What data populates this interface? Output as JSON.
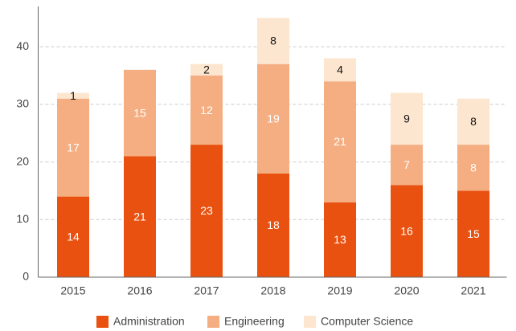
{
  "chart_data": {
    "type": "stacked_bar",
    "categories": [
      "2015",
      "2016",
      "2017",
      "2018",
      "2019",
      "2020",
      "2021"
    ],
    "series": [
      {
        "name": "Administration",
        "color": "#e8510f",
        "values": [
          14,
          21,
          23,
          18,
          13,
          16,
          15
        ]
      },
      {
        "name": "Engineering",
        "color": "#f5ae82",
        "values": [
          17,
          15,
          12,
          19,
          21,
          7,
          8
        ]
      },
      {
        "name": "Computer Science",
        "color": "#fde6cf",
        "values": [
          1,
          null,
          2,
          8,
          4,
          9,
          8
        ]
      }
    ],
    "ylim": [
      0,
      47
    ],
    "yticks": [
      0,
      10,
      20,
      30,
      40
    ],
    "grid": true,
    "legend": "bottom"
  }
}
